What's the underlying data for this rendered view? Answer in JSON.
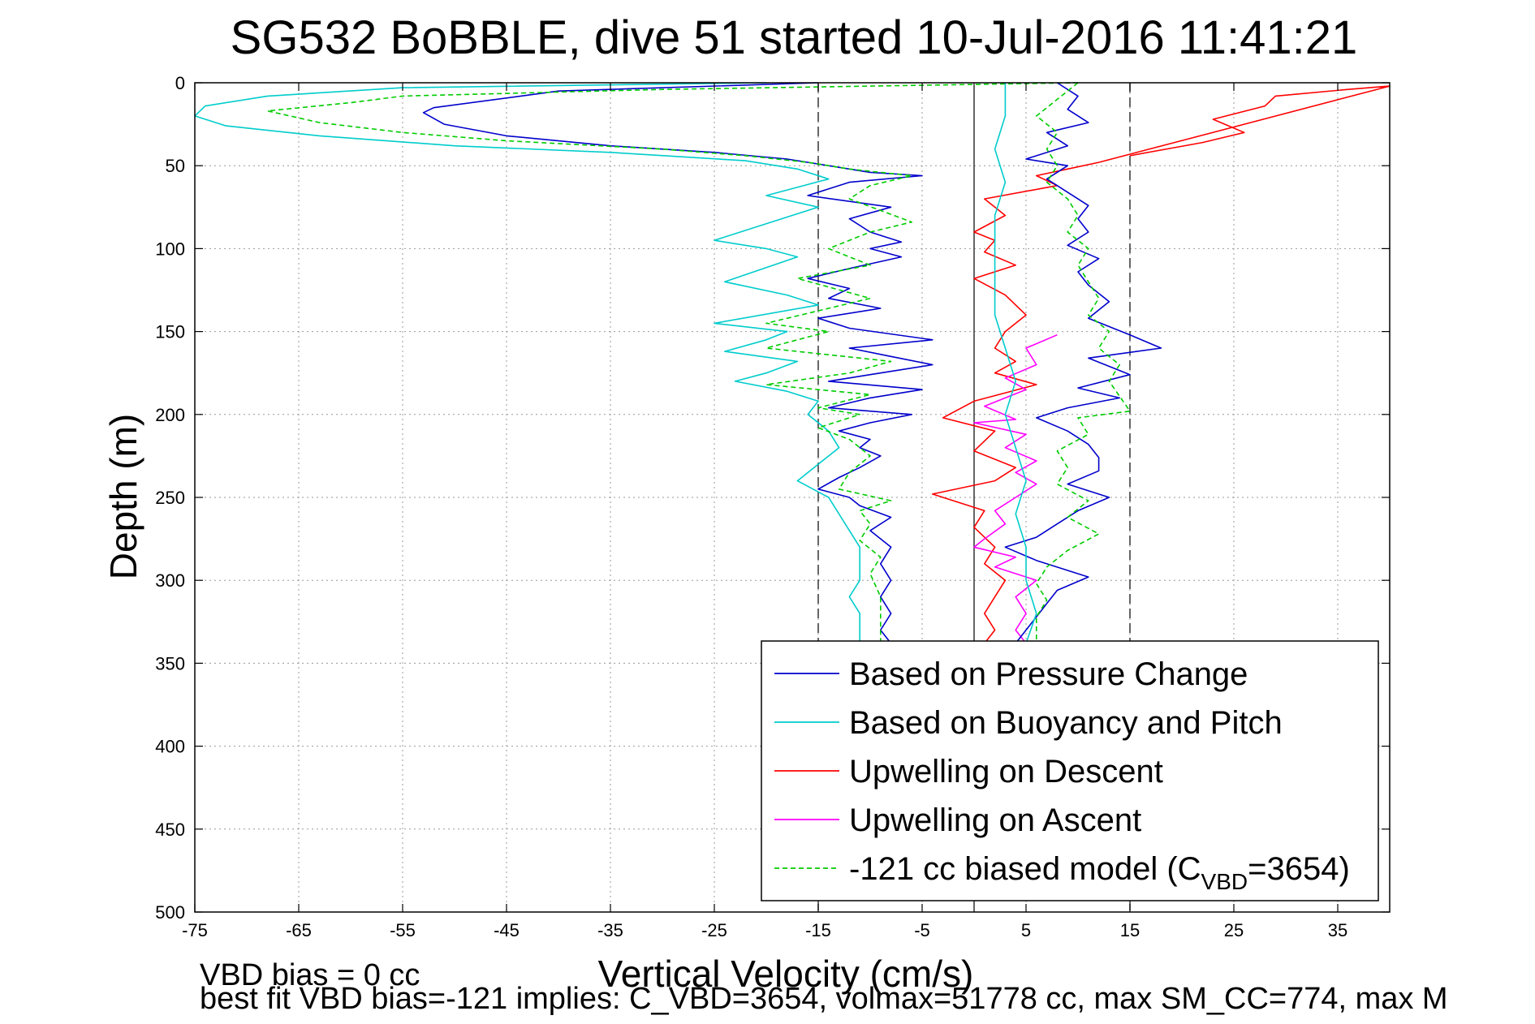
{
  "chart_data": {
    "type": "line",
    "title": "SG532 BoBBLE, dive 51 started 10-Jul-2016 11:41:21",
    "xlabel": "Vertical Velocity (cm/s)",
    "ylabel": "Depth (m)",
    "xlim": [
      -75,
      40
    ],
    "ylim": [
      0,
      500
    ],
    "y_reversed": true,
    "xticks": [
      -75,
      -65,
      -55,
      -45,
      -35,
      -25,
      -15,
      -5,
      5,
      15,
      25,
      35
    ],
    "yticks": [
      0,
      50,
      100,
      150,
      200,
      250,
      300,
      350,
      400,
      450,
      500
    ],
    "grid": true,
    "legend_position": "lower-right",
    "reference_lines": {
      "dashed": [
        -15,
        15
      ],
      "solid": [
        0
      ]
    },
    "legend": {
      "entries": [
        {
          "series": 0,
          "label": "Based on Pressure Change"
        },
        {
          "series": 1,
          "label": "Based on Buoyancy and Pitch"
        },
        {
          "series": 2,
          "label": "Upwelling on Descent"
        },
        {
          "series": 3,
          "label": "Upwelling on Ascent"
        },
        {
          "series": 4,
          "label_prefix": "-121 cc biased model (C",
          "label_sub": "VBD",
          "label_suffix": "=3654)"
        }
      ]
    },
    "series": [
      {
        "color": "#0000cc",
        "style": "solid",
        "points": [
          [
            -15,
            0
          ],
          [
            -40,
            5
          ],
          [
            -52,
            15
          ],
          [
            -53,
            18
          ],
          [
            -51,
            25
          ],
          [
            -45,
            32
          ],
          [
            -35,
            38
          ],
          [
            -25,
            42
          ],
          [
            -18,
            46
          ],
          [
            -14,
            50
          ],
          [
            -10,
            54
          ],
          [
            -5,
            56
          ],
          [
            -12,
            60
          ],
          [
            -16,
            68
          ],
          [
            -8,
            75
          ],
          [
            -12,
            82
          ],
          [
            -10,
            90
          ],
          [
            -7,
            96
          ],
          [
            -10,
            100
          ],
          [
            -7,
            105
          ],
          [
            -12,
            112
          ],
          [
            -16,
            118
          ],
          [
            -12,
            124
          ],
          [
            -14,
            130
          ],
          [
            -9,
            136
          ],
          [
            -15,
            142
          ],
          [
            -12,
            148
          ],
          [
            -4,
            155
          ],
          [
            -12,
            160
          ],
          [
            -8,
            165
          ],
          [
            -4,
            170
          ],
          [
            -10,
            176
          ],
          [
            -14,
            180
          ],
          [
            -5,
            185
          ],
          [
            -10,
            190
          ],
          [
            -14,
            196
          ],
          [
            -6,
            200
          ],
          [
            -10,
            205
          ],
          [
            -13,
            210
          ],
          [
            -10,
            215
          ],
          [
            -11,
            220
          ],
          [
            -9,
            225
          ],
          [
            -11,
            232
          ],
          [
            -13,
            238
          ],
          [
            -15,
            245
          ],
          [
            -12,
            250
          ],
          [
            -11,
            255
          ],
          [
            -8,
            262
          ],
          [
            -10,
            270
          ],
          [
            -8,
            280
          ],
          [
            -9,
            290
          ],
          [
            -8,
            300
          ],
          [
            -9,
            310
          ],
          [
            -8,
            320
          ],
          [
            -9,
            330
          ],
          [
            -8,
            338
          ]
        ]
      },
      {
        "color": "#00cccc",
        "style": "solid",
        "points": [
          [
            -20,
            0
          ],
          [
            -55,
            3
          ],
          [
            -68,
            8
          ],
          [
            -74,
            14
          ],
          [
            -75,
            20
          ],
          [
            -72,
            26
          ],
          [
            -63,
            32
          ],
          [
            -50,
            38
          ],
          [
            -35,
            42
          ],
          [
            -22,
            47
          ],
          [
            -17,
            52
          ],
          [
            -14,
            58
          ],
          [
            -20,
            68
          ],
          [
            -15,
            75
          ],
          [
            -25,
            95
          ],
          [
            -20,
            100
          ],
          [
            -17,
            105
          ],
          [
            -24,
            120
          ],
          [
            -18,
            128
          ],
          [
            -15,
            134
          ],
          [
            -25,
            145
          ],
          [
            -18,
            150
          ],
          [
            -20,
            155
          ],
          [
            -24,
            162
          ],
          [
            -17,
            168
          ],
          [
            -20,
            175
          ],
          [
            -23,
            180
          ],
          [
            -18,
            186
          ],
          [
            -15,
            192
          ],
          [
            -16,
            200
          ],
          [
            -14,
            210
          ],
          [
            -13,
            220
          ],
          [
            -15,
            230
          ],
          [
            -17,
            240
          ],
          [
            -14,
            250
          ],
          [
            -13,
            260
          ],
          [
            -12,
            270
          ],
          [
            -11,
            280
          ],
          [
            -11,
            290
          ],
          [
            -11,
            300
          ],
          [
            -12,
            310
          ],
          [
            -11,
            320
          ],
          [
            -11,
            330
          ],
          [
            -11,
            338
          ]
        ]
      },
      {
        "color": "#ff0000",
        "style": "solid",
        "points": [
          [
            15,
            44
          ],
          [
            22,
            36
          ],
          [
            26,
            30
          ],
          [
            23,
            22
          ],
          [
            28,
            14
          ],
          [
            29,
            8
          ],
          [
            36,
            4
          ],
          [
            40,
            2
          ],
          [
            12,
            48
          ],
          [
            9,
            52
          ],
          [
            6,
            56
          ],
          [
            8,
            62
          ],
          [
            1,
            70
          ],
          [
            3,
            80
          ],
          [
            0,
            90
          ],
          [
            2,
            95
          ],
          [
            1,
            102
          ],
          [
            4,
            110
          ],
          [
            0,
            118
          ],
          [
            3,
            128
          ],
          [
            5,
            140
          ],
          [
            3,
            150
          ],
          [
            2,
            160
          ],
          [
            4,
            168
          ],
          [
            2,
            175
          ],
          [
            6,
            182
          ],
          [
            0,
            192
          ],
          [
            -3,
            202
          ],
          [
            2,
            210
          ],
          [
            0,
            222
          ],
          [
            4,
            232
          ],
          [
            2,
            240
          ],
          [
            -4,
            248
          ],
          [
            1,
            258
          ],
          [
            0,
            268
          ],
          [
            2,
            280
          ],
          [
            1,
            290
          ],
          [
            3,
            300
          ],
          [
            2,
            310
          ],
          [
            1,
            320
          ],
          [
            2,
            330
          ],
          [
            1,
            338
          ]
        ]
      },
      {
        "color": "#ff00ff",
        "style": "solid",
        "points": [
          [
            8,
            152
          ],
          [
            5,
            160
          ],
          [
            6,
            170
          ],
          [
            3,
            178
          ],
          [
            5,
            185
          ],
          [
            1,
            195
          ],
          [
            4,
            203
          ],
          [
            0,
            205
          ],
          [
            5,
            212
          ],
          [
            3,
            220
          ],
          [
            6,
            228
          ],
          [
            4,
            235
          ],
          [
            6,
            242
          ],
          [
            4,
            250
          ],
          [
            2,
            258
          ],
          [
            3,
            266
          ],
          [
            1,
            275
          ],
          [
            0,
            280
          ],
          [
            4,
            286
          ],
          [
            2,
            292
          ],
          [
            6,
            300
          ],
          [
            4,
            310
          ],
          [
            5,
            320
          ],
          [
            4,
            330
          ],
          [
            5,
            338
          ]
        ]
      },
      {
        "color": "#00cc00",
        "style": "dashed",
        "points": [
          [
            10,
            0
          ],
          [
            -30,
            4
          ],
          [
            -55,
            8
          ],
          [
            -60,
            12
          ],
          [
            -68,
            17
          ],
          [
            -63,
            24
          ],
          [
            -55,
            30
          ],
          [
            -45,
            35
          ],
          [
            -30,
            40
          ],
          [
            -22,
            44
          ],
          [
            -16,
            48
          ],
          [
            -12,
            52
          ],
          [
            -6,
            56
          ],
          [
            -10,
            62
          ],
          [
            -12,
            70
          ],
          [
            -6,
            84
          ],
          [
            -10,
            90
          ],
          [
            -14,
            100
          ],
          [
            -10,
            110
          ],
          [
            -17,
            118
          ],
          [
            -10,
            130
          ],
          [
            -14,
            136
          ],
          [
            -20,
            145
          ],
          [
            -14,
            150
          ],
          [
            -20,
            160
          ],
          [
            -8,
            168
          ],
          [
            -12,
            175
          ],
          [
            -20,
            182
          ],
          [
            -10,
            188
          ],
          [
            -15,
            196
          ],
          [
            -11,
            200
          ],
          [
            -15,
            208
          ],
          [
            -12,
            215
          ],
          [
            -10,
            225
          ],
          [
            -12,
            235
          ],
          [
            -13,
            245
          ],
          [
            -8,
            252
          ],
          [
            -11,
            258
          ],
          [
            -10,
            266
          ],
          [
            -11,
            276
          ],
          [
            -9,
            286
          ],
          [
            -10,
            296
          ],
          [
            -9,
            310
          ],
          [
            -9,
            320
          ],
          [
            -9,
            330
          ],
          [
            -9,
            338
          ]
        ]
      },
      {
        "color": "#0000cc",
        "style": "solid",
        "points": [
          [
            8,
            0
          ],
          [
            10,
            8
          ],
          [
            9,
            16
          ],
          [
            11,
            24
          ],
          [
            7,
            30
          ],
          [
            9,
            38
          ],
          [
            5,
            46
          ],
          [
            9,
            50
          ],
          [
            7,
            58
          ],
          [
            9,
            66
          ],
          [
            11,
            74
          ],
          [
            10,
            82
          ],
          [
            11,
            90
          ],
          [
            9,
            98
          ],
          [
            12,
            106
          ],
          [
            10,
            114
          ],
          [
            11,
            122
          ],
          [
            13,
            132
          ],
          [
            11,
            142
          ],
          [
            15,
            152
          ],
          [
            18,
            160
          ],
          [
            11,
            166
          ],
          [
            15,
            176
          ],
          [
            10,
            184
          ],
          [
            14,
            190
          ],
          [
            9,
            196
          ],
          [
            6,
            202
          ],
          [
            9,
            210
          ],
          [
            11,
            218
          ],
          [
            12,
            226
          ],
          [
            12,
            234
          ],
          [
            9,
            242
          ],
          [
            13,
            250
          ],
          [
            10,
            258
          ],
          [
            8,
            266
          ],
          [
            6,
            274
          ],
          [
            3,
            280
          ],
          [
            6,
            288
          ],
          [
            11,
            298
          ],
          [
            8,
            306
          ],
          [
            7,
            314
          ],
          [
            6,
            322
          ],
          [
            5,
            330
          ],
          [
            4,
            338
          ]
        ]
      },
      {
        "color": "#00cccc",
        "style": "solid",
        "points": [
          [
            3,
            0
          ],
          [
            3,
            20
          ],
          [
            2,
            40
          ],
          [
            3,
            60
          ],
          [
            2,
            80
          ],
          [
            2,
            100
          ],
          [
            2,
            120
          ],
          [
            2,
            140
          ],
          [
            3,
            160
          ],
          [
            4,
            180
          ],
          [
            3,
            200
          ],
          [
            4,
            220
          ],
          [
            5,
            240
          ],
          [
            4,
            260
          ],
          [
            5,
            280
          ],
          [
            5,
            300
          ],
          [
            6,
            320
          ],
          [
            5,
            338
          ]
        ]
      },
      {
        "color": "#00cc00",
        "style": "dashed",
        "points": [
          [
            10,
            0
          ],
          [
            8,
            10
          ],
          [
            6,
            20
          ],
          [
            8,
            30
          ],
          [
            7,
            40
          ],
          [
            8,
            50
          ],
          [
            7,
            60
          ],
          [
            9,
            70
          ],
          [
            10,
            80
          ],
          [
            9,
            90
          ],
          [
            11,
            100
          ],
          [
            10,
            110
          ],
          [
            11,
            120
          ],
          [
            12,
            130
          ],
          [
            11,
            140
          ],
          [
            13,
            150
          ],
          [
            12,
            160
          ],
          [
            14,
            170
          ],
          [
            13,
            180
          ],
          [
            15,
            198
          ],
          [
            10,
            202
          ],
          [
            11,
            212
          ],
          [
            8,
            222
          ],
          [
            9,
            232
          ],
          [
            8,
            242
          ],
          [
            11,
            252
          ],
          [
            9,
            262
          ],
          [
            12,
            272
          ],
          [
            9,
            282
          ],
          [
            7,
            292
          ],
          [
            6,
            302
          ],
          [
            7,
            312
          ],
          [
            6,
            322
          ],
          [
            6,
            332
          ],
          [
            6,
            338
          ]
        ]
      }
    ]
  },
  "footnotes": {
    "line1": "VBD bias = 0 cc",
    "line2": "best fit VBD bias=-121 implies: C_VBD=3654, volmax=51778 cc, max SM_CC=774, max M"
  }
}
